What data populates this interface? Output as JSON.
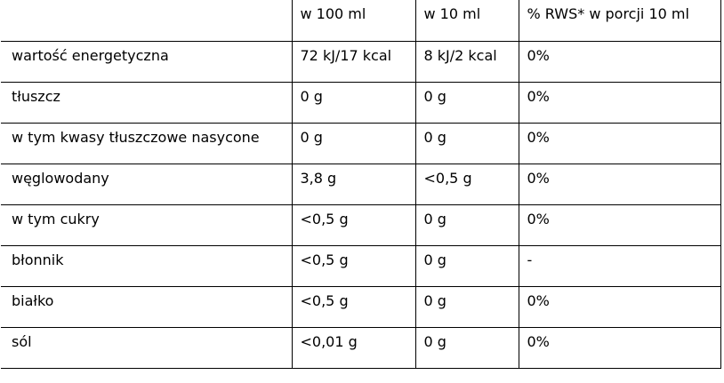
{
  "table": {
    "header": [
      "",
      "w 100 ml",
      "w 10 ml",
      "% RWS* w porcji 10 ml"
    ],
    "rows": [
      [
        "wartość energetyczna",
        "72 kJ/17 kcal",
        "8 kJ/2 kcal",
        "0%"
      ],
      [
        "tłuszcz",
        "0 g",
        "0 g",
        "0%"
      ],
      [
        "w tym kwasy tłuszczowe nasycone",
        "0 g",
        "0 g",
        "0%"
      ],
      [
        "węglowodany",
        "3,8 g",
        "<0,5 g",
        "0%"
      ],
      [
        "w tym cukry",
        "<0,5 g",
        "0 g",
        "0%"
      ],
      [
        "błonnik",
        "<0,5 g",
        "0 g",
        "-"
      ],
      [
        "białko",
        "<0,5 g",
        "0 g",
        "0%"
      ],
      [
        "sól",
        "<0,01 g",
        "0 g",
        "0%"
      ]
    ]
  }
}
